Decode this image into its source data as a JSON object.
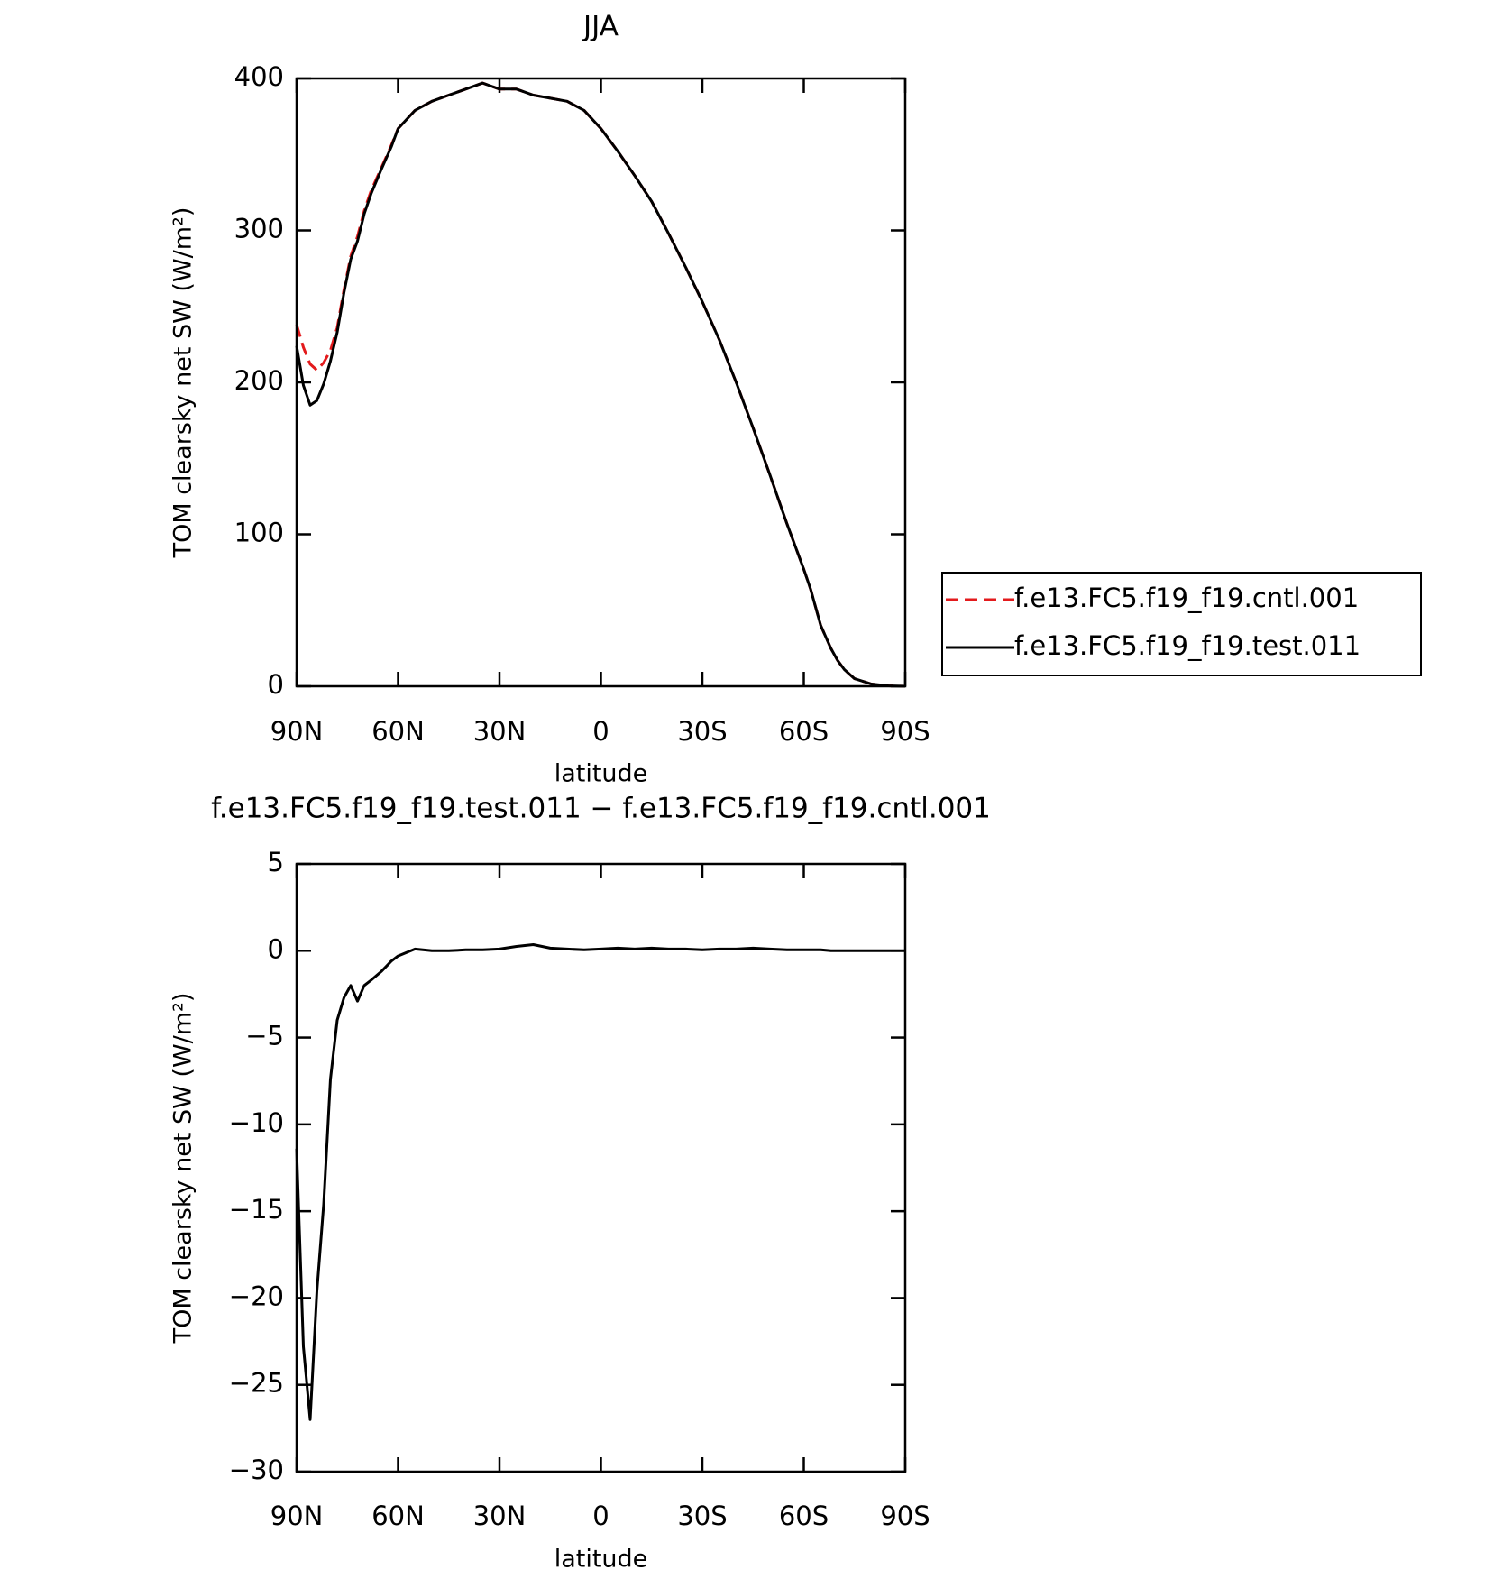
{
  "chart_data": [
    {
      "type": "line",
      "title": "JJA",
      "xlabel": "latitude",
      "ylabel": "TOM clearsky net SW (W/m²)",
      "x": [
        90,
        88,
        86,
        84,
        82,
        80,
        78,
        76,
        74,
        72,
        70,
        68,
        65,
        62,
        60,
        55,
        50,
        45,
        40,
        35,
        30,
        25,
        20,
        15,
        10,
        5,
        0,
        -5,
        -10,
        -15,
        -20,
        -25,
        -30,
        -35,
        -40,
        -45,
        -50,
        -55,
        -60,
        -62,
        -65,
        -68,
        -70,
        -72,
        -75,
        -80,
        -85,
        -90
      ],
      "series": [
        {
          "name": "f.e13.FC5.f19_f19.cntl.001",
          "color": "#e31a1c",
          "dash": true,
          "values": [
            238,
            223,
            212,
            208,
            213,
            221,
            236,
            261,
            283,
            296,
            313,
            326,
            341,
            356,
            367,
            379,
            385,
            389,
            393,
            397,
            393,
            393,
            389,
            387,
            385,
            379,
            367,
            352,
            336,
            319,
            298,
            276,
            253,
            228,
            200,
            170,
            139,
            107,
            77,
            64,
            40,
            25,
            17,
            11,
            5,
            1.5,
            0.3,
            0
          ]
        },
        {
          "name": "f.e13.FC5.f19_f19.test.011",
          "color": "#000000",
          "dash": false,
          "values": [
            224,
            198,
            185,
            188,
            199,
            214,
            233,
            259,
            281,
            293,
            311,
            324,
            340,
            355,
            367,
            379,
            385,
            389,
            393,
            397,
            393,
            393,
            389,
            387,
            385,
            379,
            367,
            352,
            336,
            319,
            298,
            276,
            253,
            228,
            200,
            170,
            139,
            107,
            77,
            64,
            40,
            25,
            17,
            11,
            5,
            1.5,
            0.3,
            0
          ]
        }
      ],
      "xlim": [
        90,
        -90
      ],
      "xticks": [
        {
          "value": 90,
          "label": "90N"
        },
        {
          "value": 60,
          "label": "60N"
        },
        {
          "value": 30,
          "label": "30N"
        },
        0,
        {
          "value": -30,
          "label": "30S"
        },
        {
          "value": -60,
          "label": "60S"
        },
        {
          "value": -90,
          "label": "90S"
        }
      ],
      "ylim": [
        0,
        400
      ],
      "yticks": [
        0,
        100,
        200,
        300,
        400
      ],
      "legend": "outside-right"
    },
    {
      "type": "line",
      "title": "f.e13.FC5.f19_f19.test.011 − f.e13.FC5.f19_f19.cntl.001",
      "xlabel": "latitude",
      "ylabel": "TOM clearsky net SW (W/m²)",
      "x": [
        90,
        88,
        86,
        84,
        82,
        80,
        78,
        76,
        74,
        72,
        70,
        68,
        65,
        62,
        60,
        55,
        50,
        45,
        40,
        35,
        30,
        25,
        20,
        15,
        10,
        5,
        0,
        -5,
        -10,
        -15,
        -20,
        -25,
        -30,
        -35,
        -40,
        -45,
        -50,
        -55,
        -60,
        -62,
        -65,
        -68,
        -70,
        -72,
        -75,
        -80,
        -85,
        -90
      ],
      "series": [
        {
          "color": "#000000",
          "dash": false,
          "values": [
            -11.4,
            -22.8,
            -27,
            -19.6,
            -14.6,
            -7.4,
            -4,
            -2.7,
            -2,
            -2.9,
            -2,
            -1.7,
            -1.2,
            -0.6,
            -0.3,
            0.1,
            0,
            0,
            0.05,
            0.05,
            0.1,
            0.25,
            0.35,
            0.15,
            0.1,
            0.05,
            0.1,
            0.15,
            0.1,
            0.15,
            0.1,
            0.1,
            0.05,
            0.1,
            0.1,
            0.15,
            0.1,
            0.05,
            0.05,
            0.05,
            0.05,
            0,
            0,
            0,
            0,
            0,
            0,
            0
          ]
        }
      ],
      "xlim": [
        90,
        -90
      ],
      "xticks": [
        {
          "value": 90,
          "label": "90N"
        },
        {
          "value": 60,
          "label": "60N"
        },
        {
          "value": 30,
          "label": "30N"
        },
        0,
        {
          "value": -30,
          "label": "30S"
        },
        {
          "value": -60,
          "label": "60S"
        },
        {
          "value": -90,
          "label": "90S"
        }
      ],
      "ylim": [
        -30,
        5
      ],
      "yticks": [
        5,
        0,
        {
          "value": -5,
          "label": "−5"
        },
        {
          "value": -10,
          "label": "−10"
        },
        {
          "value": -15,
          "label": "−15"
        },
        {
          "value": -20,
          "label": "−20"
        },
        {
          "value": -25,
          "label": "−25"
        },
        {
          "value": -30,
          "label": "−30"
        }
      ]
    }
  ]
}
